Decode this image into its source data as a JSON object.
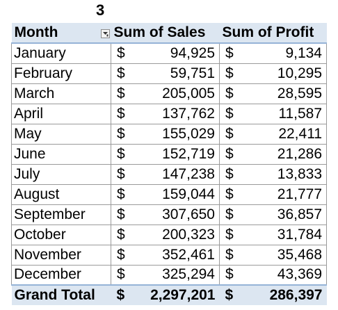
{
  "sheet_label": "3",
  "pivot": {
    "headers": {
      "month": "Month",
      "sales": "Sum of Sales",
      "profit": "Sum of Profit"
    },
    "currency_symbol": "$",
    "rows": [
      {
        "month": "January",
        "sales": "94,925",
        "profit": "9,134"
      },
      {
        "month": "February",
        "sales": "59,751",
        "profit": "10,295"
      },
      {
        "month": "March",
        "sales": "205,005",
        "profit": "28,595"
      },
      {
        "month": "April",
        "sales": "137,762",
        "profit": "11,587"
      },
      {
        "month": "May",
        "sales": "155,029",
        "profit": "22,411"
      },
      {
        "month": "June",
        "sales": "152,719",
        "profit": "21,286"
      },
      {
        "month": "July",
        "sales": "147,238",
        "profit": "13,833"
      },
      {
        "month": "August",
        "sales": "159,044",
        "profit": "21,777"
      },
      {
        "month": "September",
        "sales": "307,650",
        "profit": "36,857"
      },
      {
        "month": "October",
        "sales": "200,323",
        "profit": "31,784"
      },
      {
        "month": "November",
        "sales": "352,461",
        "profit": "35,468"
      },
      {
        "month": "December",
        "sales": "325,294",
        "profit": "43,369"
      }
    ],
    "grand_total": {
      "label": "Grand Total",
      "sales": "2,297,201",
      "profit": "286,397"
    }
  },
  "icons": {
    "filter": "filter-dropdown-icon"
  },
  "colors": {
    "header_background": "#dce6f1",
    "header_border": "#95b3d7",
    "grid_border": "#9a9a9a"
  }
}
